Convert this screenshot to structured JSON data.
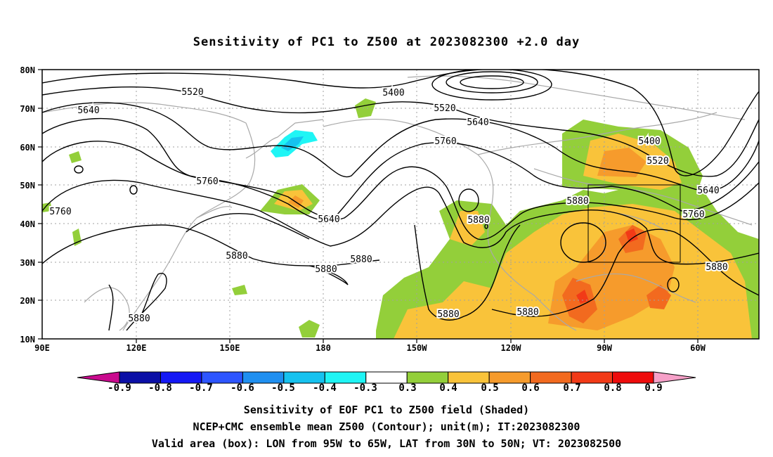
{
  "title": "Sensitivity of PC1 to Z500 at 2023082300 +2.0 day",
  "map": {
    "lat_ticks": [
      "80N",
      "70N",
      "60N",
      "50N",
      "40N",
      "30N",
      "20N",
      "10N"
    ],
    "lon_ticks": [
      "90E",
      "120E",
      "150E",
      "180",
      "150W",
      "120W",
      "90W",
      "60W"
    ],
    "contour_labels": [
      "5400",
      "5520",
      "5640",
      "5760",
      "5880",
      "5400",
      "5520",
      "5640",
      "5760",
      "5880",
      "5880",
      "5880",
      "5880",
      "5520",
      "5640",
      "5760",
      "5640",
      "5760",
      "5880",
      "5880"
    ],
    "valid_box": {
      "lon_from": "95W",
      "lon_to": "65W",
      "lat_from": "30N",
      "lat_to": "50N"
    }
  },
  "colorbar": {
    "labels": [
      "-0.9",
      "-0.8",
      "-0.7",
      "-0.6",
      "-0.5",
      "-0.4",
      "-0.3",
      "0.3",
      "0.4",
      "0.5",
      "0.6",
      "0.7",
      "0.8",
      "0.9"
    ],
    "colors": [
      "#0b0fa6",
      "#1418f5",
      "#2d55ff",
      "#1f8ff0",
      "#16c2ef",
      "#1ff5f5",
      "#ffffff",
      "#93cf3a",
      "#f9c33a",
      "#f69b2c",
      "#f26a1f",
      "#f23a17",
      "#ee0c0c"
    ],
    "low_end_color": "#c90a8e",
    "high_end_color": "#f6a0c8"
  },
  "captions": {
    "line1": "Sensitivity of EOF PC1 to Z500 field (Shaded)",
    "line2": "NCEP+CMC ensemble mean Z500 (Contour); unit(m); IT:2023082300",
    "line3": "Valid area (box): LON from 95W to 65W, LAT from 30N to 50N; VT: 2023082500"
  }
}
